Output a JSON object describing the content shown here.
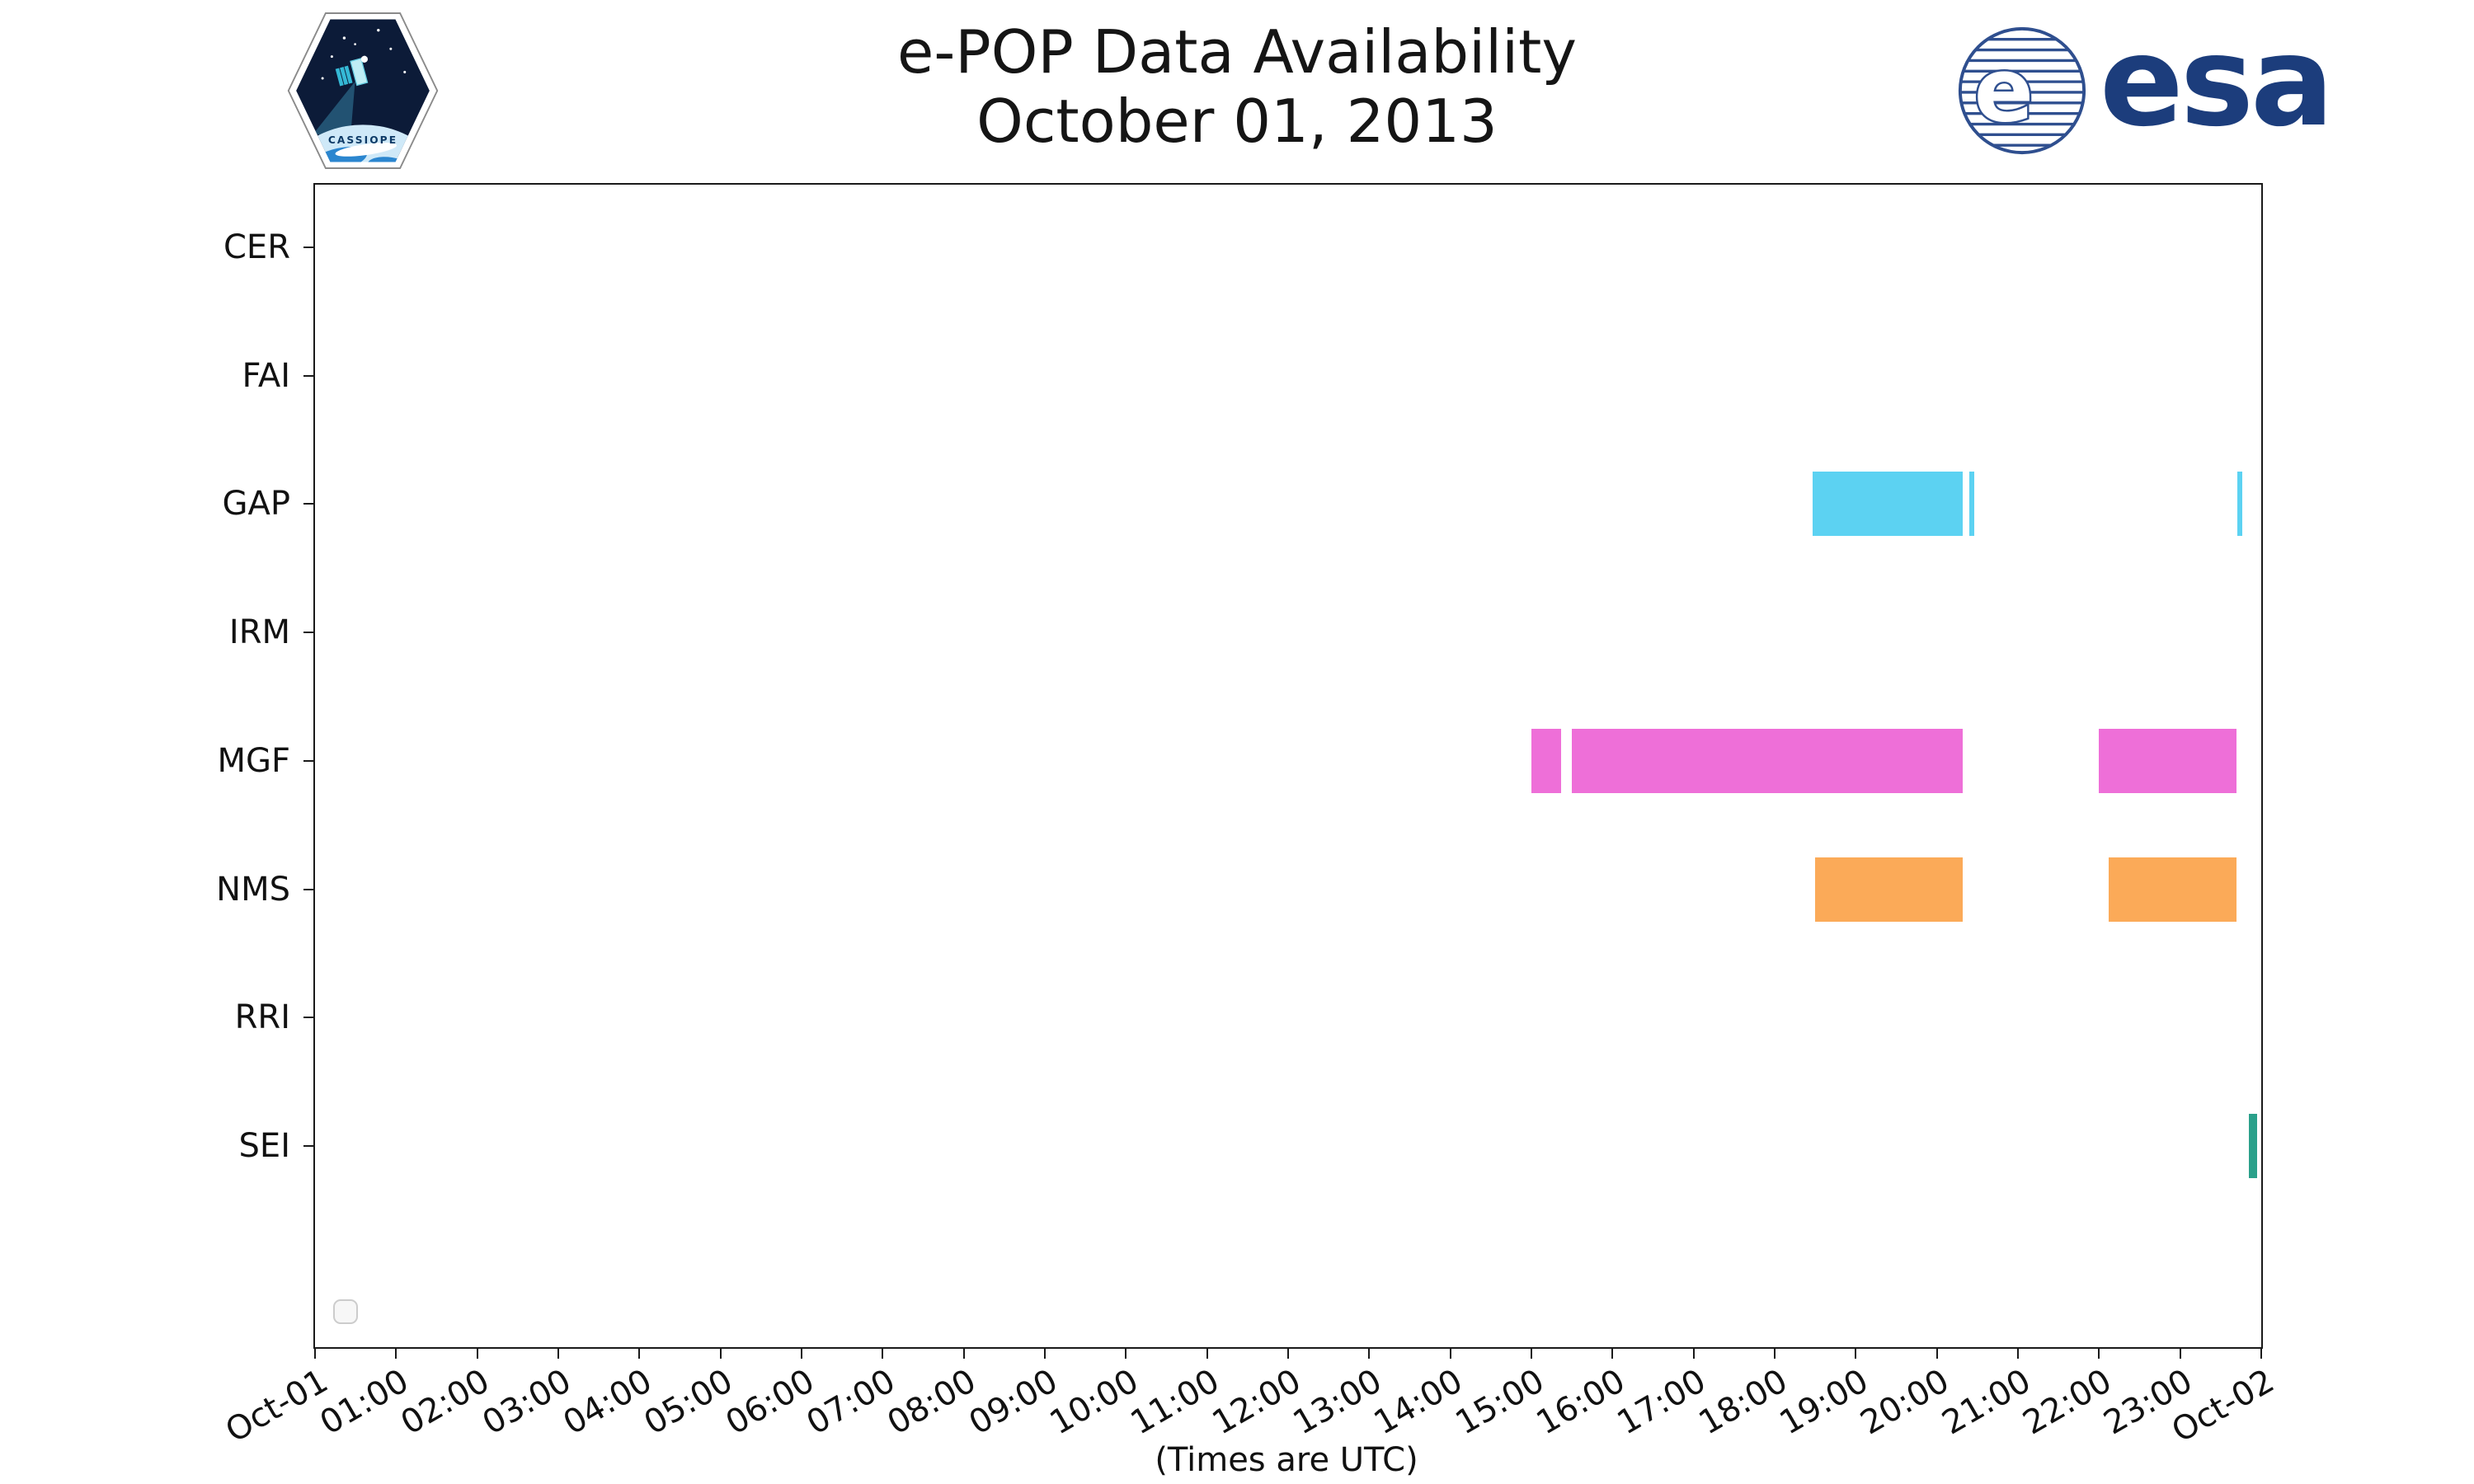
{
  "logos": {
    "cassiope_text": "CASSIOPE",
    "esa_text": "esa",
    "esa_blue": "#1c3d7c"
  },
  "chart_data": {
    "type": "timeline",
    "title": "e-POP Data Availability",
    "subtitle": "October 01, 2013",
    "xlabel": "(Times are UTC)",
    "x_axis": {
      "start_hour": 0,
      "end_hour": 24,
      "tick_interval_hours": 1
    },
    "x_tick_labels": [
      "Oct-01",
      "01:00",
      "02:00",
      "03:00",
      "04:00",
      "05:00",
      "06:00",
      "07:00",
      "08:00",
      "09:00",
      "10:00",
      "11:00",
      "12:00",
      "13:00",
      "14:00",
      "15:00",
      "16:00",
      "17:00",
      "18:00",
      "19:00",
      "20:00",
      "21:00",
      "22:00",
      "23:00",
      "Oct-02"
    ],
    "rows": [
      "CER",
      "FAI",
      "GAP",
      "IRM",
      "MGF",
      "NMS",
      "RRI",
      "SEI"
    ],
    "series": [
      {
        "row": "GAP",
        "color": "#5cd2f2",
        "intervals_hours": [
          [
            18.47,
            20.32
          ],
          [
            20.4,
            20.46
          ],
          [
            23.7,
            23.77
          ]
        ]
      },
      {
        "row": "MGF",
        "color": "#ee6fd8",
        "intervals_hours": [
          [
            15.0,
            15.37
          ],
          [
            15.5,
            20.32
          ],
          [
            22.0,
            23.7
          ]
        ]
      },
      {
        "row": "NMS",
        "color": "#fbaa58",
        "intervals_hours": [
          [
            18.5,
            20.32
          ],
          [
            22.12,
            23.7
          ]
        ]
      },
      {
        "row": "SEI",
        "color": "#2aa08a",
        "intervals_hours": [
          [
            23.85,
            23.95
          ]
        ]
      }
    ],
    "grid": false,
    "legend": "empty box, bottom-left inside plot"
  }
}
